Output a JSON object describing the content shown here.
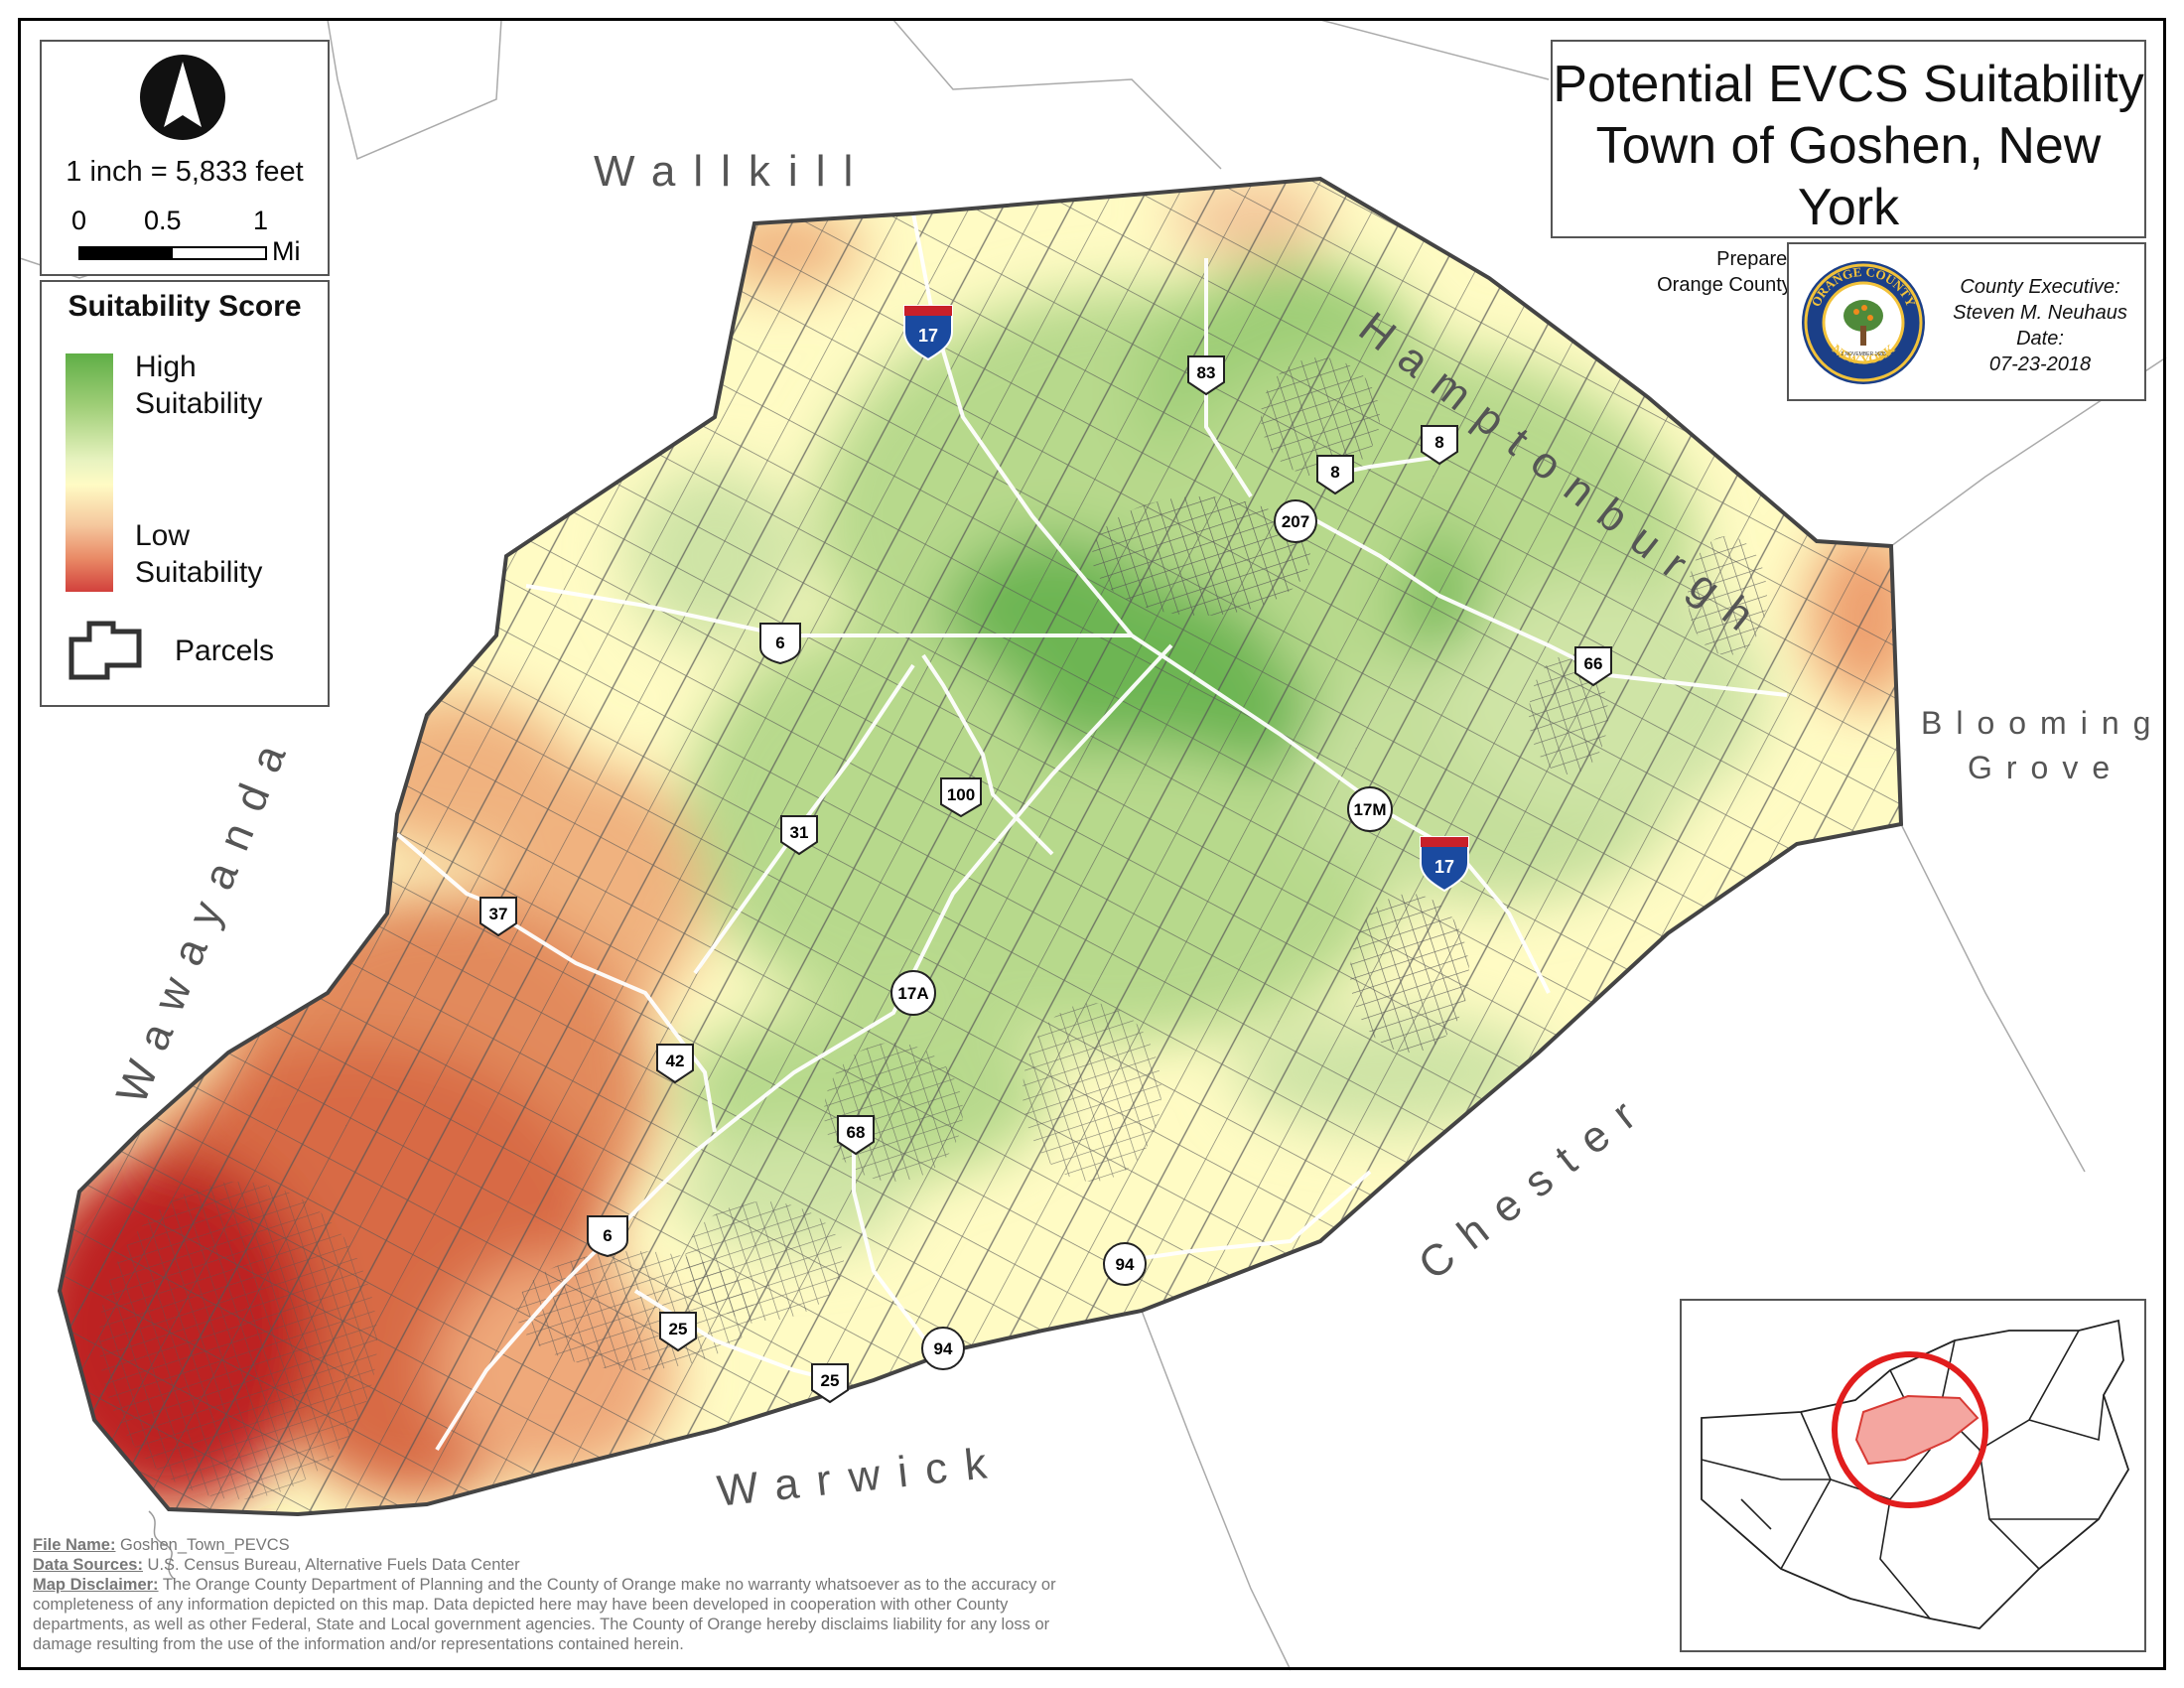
{
  "title": {
    "line1": "Potential EVCS Suitability",
    "line2": "Town of Goshen, New York",
    "prepared_by_line1": "Prepared By: Brendan Cullen,",
    "prepared_by_line2": "Orange County Planning Department Intern"
  },
  "county_exec": {
    "line1": "County Executive:",
    "line2": "Steven M. Neuhaus",
    "line3": "Date:",
    "line4": "07-23-2018",
    "seal_top": "ORANGE COUNTY",
    "seal_bottom": "NEW YORK",
    "seal_date": "1 NOVEMBER 1683"
  },
  "scale": {
    "ratio": "1 inch = 5,833 feet",
    "tick0": "0",
    "tick1": "0.5",
    "tick2": "1",
    "unit": "Mi"
  },
  "legend": {
    "title": "Suitability Score",
    "high_line1": "High",
    "high_line2": "Suitability",
    "low_line1": "Low",
    "low_line2": "Suitability",
    "parcels": "Parcels",
    "colors": {
      "high": "#5fae46",
      "mid": "#fffbc4",
      "low": "#d2403c"
    }
  },
  "towns": {
    "wallkill": "Wallkill",
    "hamptonburgh": "Hamptonburgh",
    "blooming_grove_l1": "Blooming",
    "blooming_grove_l2": "Grove",
    "chester": "Chester",
    "warwick": "Warwick",
    "wawayanda": "Wawayanda"
  },
  "routes": {
    "i17_a": "17",
    "i17_b": "17",
    "r83": "83",
    "r8_a": "8",
    "r8_b": "8",
    "r207": "207",
    "r66": "66",
    "r6_a": "6",
    "r6_b": "6",
    "r100": "100",
    "r17m": "17M",
    "r31": "31",
    "r37": "37",
    "r17a": "17A",
    "r42": "42",
    "r68": "68",
    "r94_a": "94",
    "r94_b": "94",
    "r25_a": "25",
    "r25_b": "25"
  },
  "notes": {
    "file_name_label": "File Name:",
    "file_name": " Goshen_Town_PEVCS",
    "sources_label": "Data Sources:",
    "sources": " U.S. Census Bureau, Alternative Fuels Data Center",
    "disclaimer_label": "Map Disclaimer:",
    "disclaimer": " The Orange County Department of Planning and the County of Orange make no warranty whatsoever as to the accuracy or completeness of any information depicted on this map. Data depicted here may have been developed in cooperation with other County departments, as well as other Federal, State and Local government agencies. The County of Orange hereby disclaims liability for any loss or damage resulting from the use of the information and/or representations contained herein."
  }
}
